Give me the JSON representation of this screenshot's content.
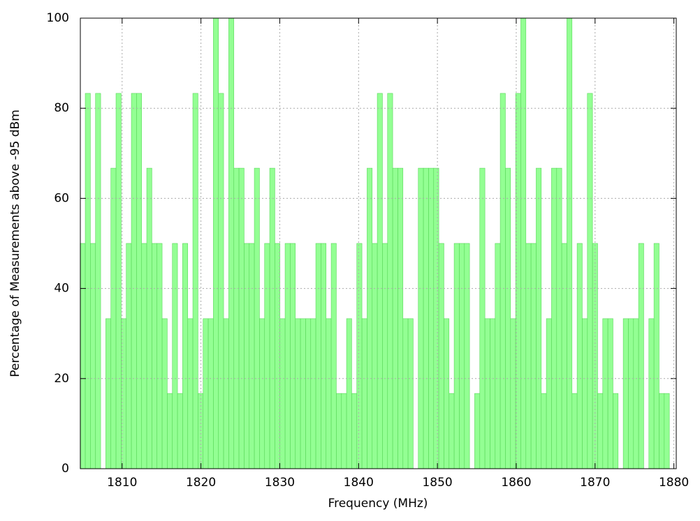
{
  "chart_data": {
    "type": "bar",
    "xlabel": "Frequency (MHz)",
    "ylabel": "Percentage of Measurements above -95 dBm",
    "x": [
      1805,
      1805.65,
      1806.3,
      1806.95,
      1807.6,
      1808.25,
      1808.9,
      1809.55,
      1810.2,
      1810.85,
      1811.5,
      1812.15,
      1812.8,
      1813.45,
      1814.1,
      1814.75,
      1815.4,
      1816.05,
      1816.7,
      1817.35,
      1818,
      1818.65,
      1819.3,
      1819.95,
      1820.6,
      1821.25,
      1821.9,
      1822.55,
      1823.2,
      1823.85,
      1824.5,
      1825.15,
      1825.8,
      1826.45,
      1827.1,
      1827.75,
      1828.4,
      1829.05,
      1829.7,
      1830.35,
      1831,
      1831.65,
      1832.3,
      1832.95,
      1833.6,
      1834.25,
      1834.9,
      1835.55,
      1836.2,
      1836.85,
      1837.5,
      1838.15,
      1838.8,
      1839.45,
      1840.1,
      1840.75,
      1841.4,
      1842.05,
      1842.7,
      1843.35,
      1844,
      1844.65,
      1845.3,
      1845.95,
      1846.6,
      1847.25,
      1847.9,
      1848.55,
      1849.2,
      1849.85,
      1850.5,
      1851.15,
      1851.8,
      1852.45,
      1853.1,
      1853.75,
      1854.4,
      1855.05,
      1855.7,
      1856.35,
      1857,
      1857.65,
      1858.3,
      1858.95,
      1859.6,
      1860.25,
      1860.9,
      1861.55,
      1862.2,
      1862.85,
      1863.5,
      1864.15,
      1864.8,
      1865.45,
      1866.1,
      1866.75,
      1867.4,
      1868.05,
      1868.7,
      1869.35,
      1870,
      1870.65,
      1871.3,
      1871.95,
      1872.6,
      1873.25,
      1873.9,
      1874.55,
      1875.2,
      1875.85,
      1876.5,
      1877.15,
      1877.8,
      1878.45,
      1879.1
    ],
    "values": [
      50,
      83.3,
      50,
      83.3,
      0,
      33.3,
      66.7,
      83.3,
      33.3,
      50,
      83.3,
      83.3,
      50,
      66.7,
      50,
      50,
      33.3,
      16.7,
      50,
      16.7,
      50,
      33.3,
      83.3,
      16.7,
      33.3,
      33.3,
      100,
      83.3,
      33.3,
      100,
      66.7,
      66.7,
      50,
      50,
      66.7,
      33.3,
      50,
      66.7,
      50,
      33.3,
      50,
      50,
      33.3,
      33.3,
      33.3,
      33.3,
      50,
      50,
      33.3,
      50,
      16.7,
      16.7,
      33.3,
      16.7,
      50,
      33.3,
      66.7,
      50,
      83.3,
      50,
      83.3,
      66.7,
      66.7,
      33.3,
      33.3,
      0,
      66.7,
      66.7,
      66.7,
      66.7,
      50,
      33.3,
      16.7,
      50,
      50,
      50,
      0,
      16.7,
      66.7,
      33.3,
      33.3,
      50,
      83.3,
      66.7,
      33.3,
      83.3,
      100,
      50,
      50,
      66.7,
      16.7,
      33.3,
      66.7,
      66.7,
      50,
      100,
      16.7,
      50,
      33.3,
      83.3,
      50,
      16.7,
      33.3,
      33.3,
      16.7,
      0,
      33.3,
      33.3,
      33.3,
      50,
      0,
      33.3,
      50,
      16.7,
      16.7
    ],
    "color": "#80ff80",
    "xlim": [
      1804.7,
      1880.3
    ],
    "xticks": [
      1810,
      1820,
      1830,
      1840,
      1850,
      1860,
      1870,
      1880
    ],
    "ylim": [
      0,
      100
    ],
    "yticks": [
      0,
      20,
      40,
      60,
      80,
      100
    ],
    "grid": true
  }
}
